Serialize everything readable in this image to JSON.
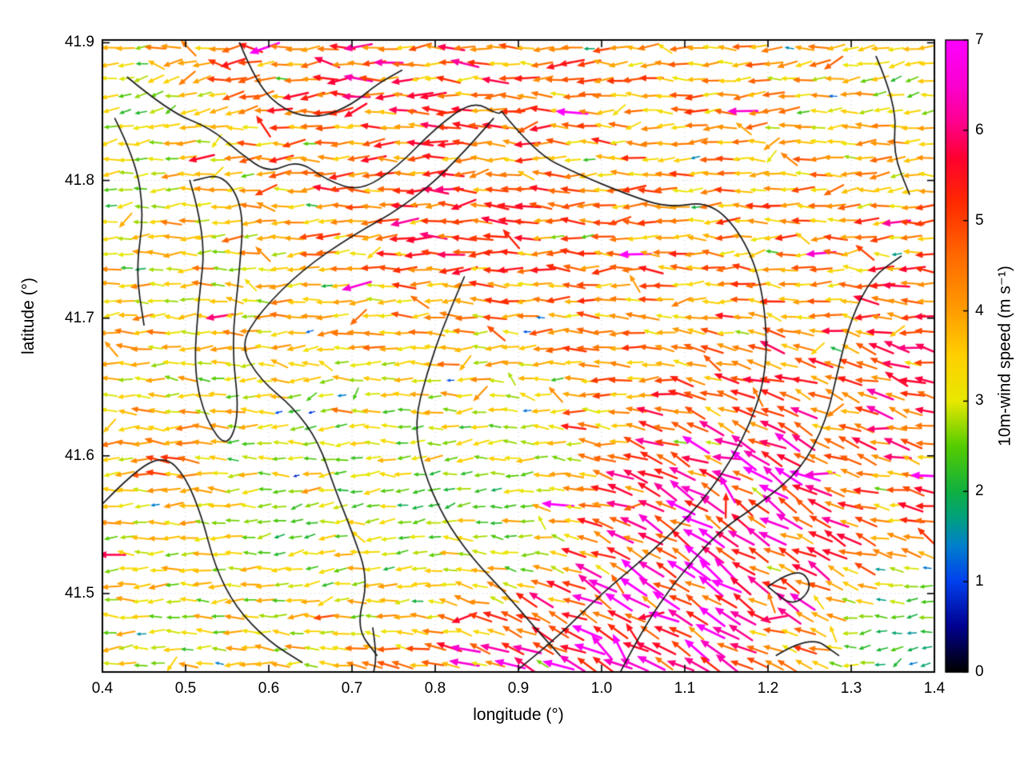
{
  "figure": {
    "background": "#ffffff",
    "border_color": "#000000",
    "contour_color": "#1c1c1c"
  },
  "chart_data": {
    "type": "quiver",
    "title": "",
    "xlabel": "longitude (°)",
    "ylabel": "latitude (°)",
    "xlim": [
      0.4,
      1.4
    ],
    "ylim": [
      41.443,
      41.902
    ],
    "grid": "dotted",
    "x_tick_values": [
      0.4,
      0.5,
      0.6,
      0.7,
      0.8,
      0.9,
      1.0,
      1.1,
      1.2,
      1.3,
      1.4
    ],
    "x_tick_labels": [
      "0.4",
      "0.5",
      "0.6",
      "0.7",
      "0.8",
      "0.9",
      "1.0",
      "1.1",
      "1.2",
      "1.3",
      "1.4"
    ],
    "y_tick_values": [
      41.5,
      41.6,
      41.7,
      41.8,
      41.9
    ],
    "y_tick_labels": [
      "41.5",
      "41.6",
      "41.7",
      "41.8",
      "41.9"
    ],
    "colorbar": {
      "label": "10m-wind speed (m s⁻¹)",
      "min": 0,
      "max": 7,
      "tick_values": [
        0,
        1,
        2,
        3,
        4,
        5,
        6,
        7
      ],
      "tick_labels": [
        "0",
        "1",
        "2",
        "3",
        "4",
        "5",
        "6",
        "7"
      ],
      "colormap_stops": [
        [
          0.0,
          "#000000"
        ],
        [
          0.5,
          "#000090"
        ],
        [
          1.0,
          "#0040ee"
        ],
        [
          1.4,
          "#0080cc"
        ],
        [
          1.7,
          "#00a080"
        ],
        [
          2.0,
          "#10b040"
        ],
        [
          2.5,
          "#55cc00"
        ],
        [
          3.0,
          "#e8e800"
        ],
        [
          3.5,
          "#ffd000"
        ],
        [
          4.0,
          "#ff9d00"
        ],
        [
          4.6,
          "#ff6a00"
        ],
        [
          5.2,
          "#ff2a00"
        ],
        [
          5.7,
          "#ff0030"
        ],
        [
          6.1,
          "#ff0090"
        ],
        [
          6.5,
          "#fb00d0"
        ],
        [
          7.0,
          "#ff00ff"
        ]
      ]
    },
    "arrow_grid": {
      "nx": 54,
      "ny": 40,
      "seed": 42
    },
    "sample_format": [
      "lon",
      "lat",
      "speed_ms",
      "dir_deg_ccw_from_east",
      "radius_deg"
    ],
    "wind_samples": [
      [
        0.44,
        41.86,
        2.0,
        205,
        0.07
      ],
      [
        0.41,
        41.79,
        2.3,
        195,
        0.06
      ],
      [
        0.5,
        41.82,
        3.0,
        190,
        0.05
      ],
      [
        0.58,
        41.87,
        4.6,
        190,
        0.09
      ],
      [
        0.72,
        41.88,
        5.4,
        185,
        0.07
      ],
      [
        0.84,
        41.86,
        5.0,
        180,
        0.07
      ],
      [
        0.68,
        41.8,
        4.8,
        185,
        0.09
      ],
      [
        0.82,
        41.77,
        5.4,
        180,
        0.11
      ],
      [
        0.95,
        41.8,
        4.4,
        180,
        0.12
      ],
      [
        1.08,
        41.83,
        4.0,
        183,
        0.12
      ],
      [
        1.22,
        41.86,
        3.6,
        188,
        0.09
      ],
      [
        1.35,
        41.87,
        2.6,
        200,
        0.06
      ],
      [
        1.32,
        41.79,
        3.3,
        190,
        0.08
      ],
      [
        0.6,
        41.78,
        3.8,
        186,
        0.05
      ],
      [
        0.47,
        41.75,
        3.4,
        182,
        0.05
      ],
      [
        0.75,
        41.74,
        4.6,
        184,
        0.06
      ],
      [
        0.88,
        41.74,
        4.9,
        181,
        0.06
      ],
      [
        1.1,
        41.78,
        4.2,
        182,
        0.07
      ],
      [
        0.44,
        41.7,
        3.9,
        183,
        0.09
      ],
      [
        0.4,
        41.645,
        3.6,
        179,
        0.05
      ],
      [
        0.56,
        41.73,
        3.3,
        180,
        0.07
      ],
      [
        0.52,
        41.66,
        3.0,
        178,
        0.06
      ],
      [
        0.7,
        41.71,
        3.6,
        188,
        0.09
      ],
      [
        0.85,
        41.7,
        3.8,
        182,
        0.1
      ],
      [
        1.0,
        41.72,
        4.3,
        183,
        0.1
      ],
      [
        1.13,
        41.72,
        4.1,
        182,
        0.08
      ],
      [
        1.26,
        41.71,
        4.3,
        181,
        0.07
      ],
      [
        1.36,
        41.72,
        4.9,
        186,
        0.06
      ],
      [
        0.64,
        41.64,
        2.3,
        186,
        0.07
      ],
      [
        0.75,
        41.63,
        2.4,
        183,
        0.06
      ],
      [
        0.56,
        41.6,
        2.6,
        176,
        0.05
      ],
      [
        0.47,
        41.6,
        4.8,
        177,
        0.04
      ],
      [
        0.84,
        41.62,
        2.0,
        200,
        0.05
      ],
      [
        0.92,
        41.64,
        3.2,
        183,
        0.06
      ],
      [
        1.02,
        41.66,
        3.8,
        180,
        0.06
      ],
      [
        1.17,
        41.66,
        4.5,
        160,
        0.05
      ],
      [
        1.3,
        41.68,
        4.6,
        150,
        0.05
      ],
      [
        0.62,
        41.54,
        1.9,
        215,
        0.05
      ],
      [
        0.7,
        41.57,
        2.2,
        195,
        0.05
      ],
      [
        0.78,
        41.56,
        1.4,
        235,
        0.05
      ],
      [
        0.86,
        41.57,
        0.7,
        260,
        0.06
      ],
      [
        0.91,
        41.53,
        0.8,
        280,
        0.06
      ],
      [
        0.96,
        41.59,
        2.8,
        185,
        0.05
      ],
      [
        0.41,
        41.55,
        3.2,
        180,
        0.06
      ],
      [
        0.5,
        41.48,
        3.1,
        183,
        0.07
      ],
      [
        0.55,
        41.5,
        2.9,
        182,
        0.06
      ],
      [
        0.45,
        41.44,
        3.0,
        184,
        0.06
      ],
      [
        0.62,
        41.47,
        3.3,
        178,
        0.06
      ],
      [
        0.67,
        41.5,
        2.6,
        190,
        0.05
      ],
      [
        0.74,
        41.46,
        4.0,
        172,
        0.05
      ],
      [
        0.78,
        41.5,
        2.0,
        220,
        0.04
      ],
      [
        0.84,
        41.45,
        6.0,
        158,
        0.05
      ],
      [
        0.88,
        41.5,
        3.5,
        160,
        0.04
      ],
      [
        0.93,
        41.46,
        6.8,
        150,
        0.07
      ],
      [
        0.98,
        41.44,
        6.5,
        150,
        0.05
      ],
      [
        0.97,
        41.52,
        5.5,
        150,
        0.05
      ],
      [
        1.04,
        41.49,
        7.0,
        146,
        0.08
      ],
      [
        1.1,
        41.45,
        6.2,
        150,
        0.05
      ],
      [
        1.13,
        41.53,
        7.0,
        143,
        0.09
      ],
      [
        1.2,
        41.59,
        6.8,
        141,
        0.08
      ],
      [
        1.06,
        41.59,
        6.3,
        148,
        0.06
      ],
      [
        1.24,
        41.51,
        6.0,
        145,
        0.05
      ],
      [
        1.2,
        41.45,
        4.0,
        165,
        0.05
      ],
      [
        1.25,
        41.64,
        5.6,
        148,
        0.06
      ],
      [
        1.3,
        41.61,
        4.9,
        168,
        0.06
      ],
      [
        1.33,
        41.64,
        6.5,
        150,
        0.04
      ],
      [
        1.35,
        41.56,
        4.4,
        176,
        0.06
      ],
      [
        1.28,
        41.56,
        5.8,
        147,
        0.05
      ],
      [
        1.38,
        41.62,
        5.0,
        172,
        0.05
      ],
      [
        1.32,
        41.47,
        1.0,
        230,
        0.07
      ],
      [
        1.38,
        41.5,
        1.2,
        240,
        0.05
      ],
      [
        1.38,
        41.45,
        0.9,
        250,
        0.05
      ]
    ],
    "contours": [
      [
        [
          0.88,
          41.85
        ],
        [
          0.92,
          41.82
        ],
        [
          0.97,
          41.805
        ],
        [
          1.03,
          41.79
        ],
        [
          1.08,
          41.78
        ],
        [
          1.13,
          41.785
        ],
        [
          1.17,
          41.76
        ],
        [
          1.195,
          41.72
        ],
        [
          1.2,
          41.66
        ],
        [
          1.17,
          41.61
        ],
        [
          1.12,
          41.565
        ],
        [
          1.06,
          41.53
        ],
        [
          1.0,
          41.5
        ],
        [
          0.95,
          41.47
        ],
        [
          0.9,
          41.445
        ]
      ],
      [
        [
          0.43,
          41.875
        ],
        [
          0.48,
          41.85
        ],
        [
          0.53,
          41.838
        ],
        [
          0.565,
          41.82
        ],
        [
          0.6,
          41.805
        ],
        [
          0.635,
          41.815
        ],
        [
          0.67,
          41.8
        ],
        [
          0.71,
          41.792
        ],
        [
          0.755,
          41.81
        ],
        [
          0.8,
          41.838
        ],
        [
          0.845,
          41.858
        ],
        [
          0.875,
          41.848
        ],
        [
          0.88,
          41.85
        ]
      ],
      [
        [
          0.87,
          41.845
        ],
        [
          0.82,
          41.81
        ],
        [
          0.76,
          41.78
        ],
        [
          0.7,
          41.76
        ],
        [
          0.64,
          41.735
        ],
        [
          0.59,
          41.705
        ],
        [
          0.565,
          41.68
        ],
        [
          0.59,
          41.655
        ],
        [
          0.63,
          41.635
        ],
        [
          0.66,
          41.61
        ],
        [
          0.68,
          41.575
        ],
        [
          0.7,
          41.545
        ],
        [
          0.72,
          41.51
        ],
        [
          0.705,
          41.475
        ],
        [
          0.73,
          41.455
        ]
      ],
      [
        [
          0.835,
          41.73
        ],
        [
          0.81,
          41.695
        ],
        [
          0.79,
          41.66
        ],
        [
          0.775,
          41.625
        ],
        [
          0.785,
          41.59
        ],
        [
          0.81,
          41.555
        ],
        [
          0.845,
          41.525
        ],
        [
          0.885,
          41.5
        ],
        [
          0.92,
          41.475
        ],
        [
          0.95,
          41.455
        ]
      ],
      [
        [
          0.505,
          41.8
        ],
        [
          0.525,
          41.76
        ],
        [
          0.515,
          41.71
        ],
        [
          0.51,
          41.66
        ],
        [
          0.525,
          41.625
        ],
        [
          0.55,
          41.605
        ],
        [
          0.565,
          41.63
        ],
        [
          0.555,
          41.68
        ],
        [
          0.565,
          41.735
        ],
        [
          0.57,
          41.78
        ],
        [
          0.545,
          41.805
        ],
        [
          0.51,
          41.8
        ]
      ],
      [
        [
          0.4,
          41.565
        ],
        [
          0.44,
          41.59
        ],
        [
          0.475,
          41.6
        ],
        [
          0.5,
          41.585
        ],
        [
          0.52,
          41.555
        ],
        [
          0.535,
          41.52
        ],
        [
          0.56,
          41.49
        ],
        [
          0.6,
          41.465
        ],
        [
          0.64,
          41.45
        ]
      ],
      [
        [
          0.725,
          41.475
        ],
        [
          0.73,
          41.455
        ],
        [
          0.725,
          41.44
        ]
      ],
      [
        [
          1.02,
          41.44
        ],
        [
          1.05,
          41.475
        ],
        [
          1.09,
          41.51
        ],
        [
          1.14,
          41.545
        ],
        [
          1.19,
          41.565
        ],
        [
          1.24,
          41.59
        ],
        [
          1.27,
          41.625
        ],
        [
          1.285,
          41.665
        ],
        [
          1.3,
          41.7
        ],
        [
          1.325,
          41.73
        ],
        [
          1.36,
          41.745
        ]
      ],
      [
        [
          1.2,
          41.505
        ],
        [
          1.235,
          41.52
        ],
        [
          1.255,
          41.505
        ],
        [
          1.23,
          41.49
        ],
        [
          1.2,
          41.505
        ]
      ],
      [
        [
          1.33,
          41.89
        ],
        [
          1.355,
          41.855
        ],
        [
          1.35,
          41.82
        ],
        [
          1.37,
          41.79
        ]
      ],
      [
        [
          0.415,
          41.845
        ],
        [
          0.44,
          41.815
        ],
        [
          0.45,
          41.775
        ],
        [
          0.44,
          41.735
        ],
        [
          0.45,
          41.695
        ]
      ],
      [
        [
          1.21,
          41.455
        ],
        [
          1.25,
          41.47
        ],
        [
          1.285,
          41.455
        ]
      ],
      [
        [
          0.565,
          41.9
        ],
        [
          0.585,
          41.87
        ],
        [
          0.62,
          41.85
        ],
        [
          0.66,
          41.845
        ],
        [
          0.7,
          41.855
        ],
        [
          0.73,
          41.87
        ],
        [
          0.76,
          41.88
        ]
      ]
    ]
  }
}
